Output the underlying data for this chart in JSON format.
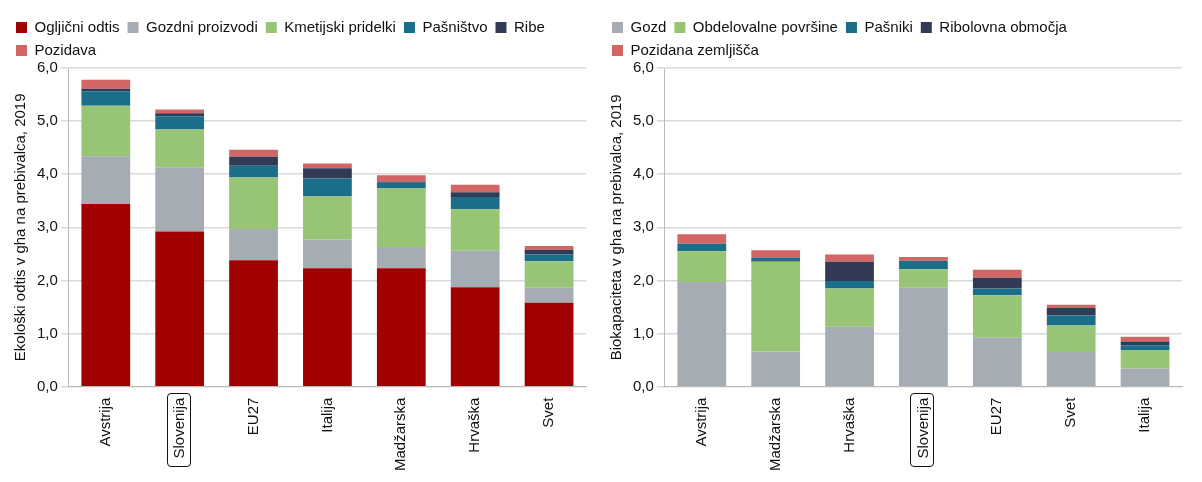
{
  "chart_data": [
    {
      "type": "bar",
      "stacked": true,
      "ylabel": "Ekološki odtis v gha na prebivalca, 2019",
      "legend": "top",
      "grid": "y",
      "categories": [
        "Avstrija",
        "Slovenija",
        "EU27",
        "Italija",
        "Madžarska",
        "Hrvaška",
        "Svet"
      ],
      "ylim": [
        0,
        6
      ],
      "yticks": [
        {
          "value": 0,
          "label": "0,0"
        },
        {
          "value": 1,
          "label": "1,0"
        },
        {
          "value": 2,
          "label": "2,0"
        },
        {
          "value": 3,
          "label": "3,0"
        },
        {
          "value": 4,
          "label": "4,0"
        },
        {
          "value": 5,
          "label": "5,0"
        },
        {
          "value": 6,
          "label": "6,0"
        }
      ],
      "series": [
        {
          "name": "Ogljični odtis",
          "color": "#a00000",
          "values": [
            3.44,
            2.92,
            2.38,
            2.23,
            2.23,
            1.87,
            1.58
          ]
        },
        {
          "name": "Gozdni proizvodi",
          "color": "#a6acb3",
          "values": [
            0.9,
            1.21,
            0.59,
            0.54,
            0.4,
            0.69,
            0.28
          ]
        },
        {
          "name": "Kmetijski pridelki",
          "color": "#98c475",
          "values": [
            0.95,
            0.71,
            0.97,
            0.81,
            1.1,
            0.78,
            0.5
          ]
        },
        {
          "name": "Pašništvo",
          "color": "#1a6e8a",
          "values": [
            0.27,
            0.25,
            0.22,
            0.34,
            0.11,
            0.23,
            0.13
          ]
        },
        {
          "name": "Ribe",
          "color": "#323b56",
          "values": [
            0.05,
            0.06,
            0.17,
            0.19,
            0.02,
            0.09,
            0.09
          ]
        },
        {
          "name": "Pozidava",
          "color": "#d46565",
          "values": [
            0.17,
            0.07,
            0.13,
            0.09,
            0.12,
            0.14,
            0.07
          ]
        }
      ]
    },
    {
      "type": "bar",
      "stacked": true,
      "ylabel": "Biokapaciteta v gha na prebivalca, 2019",
      "legend": "top",
      "grid": "y",
      "categories": [
        "Avstrija",
        "Madžarska",
        "Hrvaška",
        "Slovenija",
        "EU27",
        "Svet",
        "Italija"
      ],
      "ylim": [
        0,
        6
      ],
      "yticks": [
        {
          "value": 0,
          "label": "0,0"
        },
        {
          "value": 1,
          "label": "1,0"
        },
        {
          "value": 2,
          "label": "2,0"
        },
        {
          "value": 3,
          "label": "3,0"
        },
        {
          "value": 4,
          "label": "4,0"
        },
        {
          "value": 5,
          "label": "5,0"
        },
        {
          "value": 6,
          "label": "6,0"
        }
      ],
      "series": [
        {
          "name": "Gozd",
          "color": "#a6acb3",
          "values": [
            1.97,
            0.66,
            1.13,
            1.86,
            0.92,
            0.65,
            0.34
          ]
        },
        {
          "name": "Obdelovalne površine",
          "color": "#98c475",
          "values": [
            0.58,
            1.69,
            0.72,
            0.35,
            0.8,
            0.5,
            0.35
          ]
        },
        {
          "name": "Pašniki",
          "color": "#1a6e8a",
          "values": [
            0.14,
            0.07,
            0.14,
            0.16,
            0.13,
            0.19,
            0.09
          ]
        },
        {
          "name": "Ribolovna območja",
          "color": "#323b56",
          "values": [
            0,
            0,
            0.36,
            0,
            0.2,
            0.14,
            0.07
          ]
        },
        {
          "name": "Pozidana zemljišča",
          "color": "#d46565",
          "values": [
            0.18,
            0.15,
            0.14,
            0.07,
            0.15,
            0.06,
            0.09
          ]
        }
      ]
    }
  ]
}
